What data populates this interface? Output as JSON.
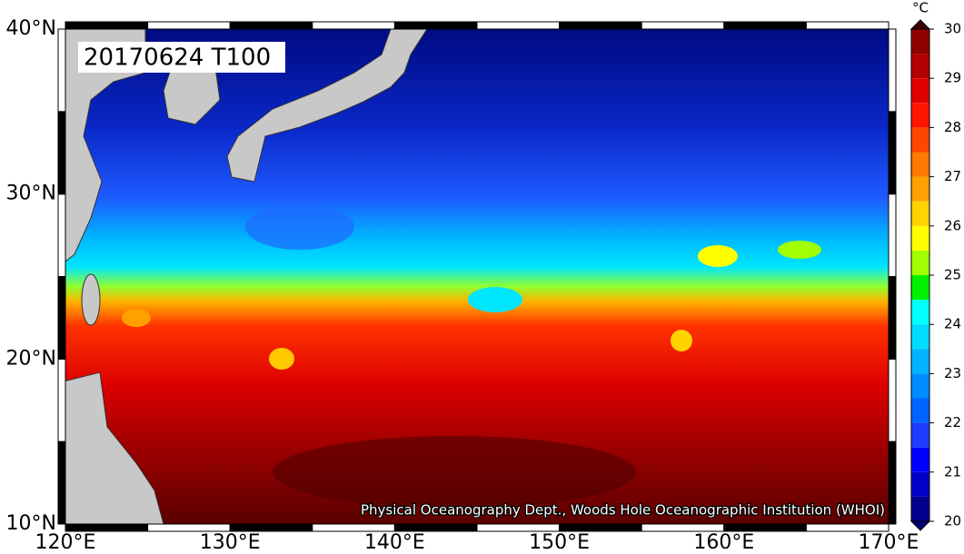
{
  "title": "20170624 T100",
  "credit": "Physical Oceanography Dept., Woods Hole Oceanographic Institution (WHOI)",
  "xlim": [
    120,
    170
  ],
  "ylim": [
    10,
    40
  ],
  "xticks": [
    {
      "value": 120,
      "label": "120°E"
    },
    {
      "value": 130,
      "label": "130°E"
    },
    {
      "value": 140,
      "label": "140°E"
    },
    {
      "value": 150,
      "label": "150°E"
    },
    {
      "value": 160,
      "label": "160°E"
    },
    {
      "value": 170,
      "label": "170°E"
    }
  ],
  "yticks": [
    {
      "value": 10,
      "label": "10°N"
    },
    {
      "value": 20,
      "label": "20°N"
    },
    {
      "value": 30,
      "label": "30°N"
    },
    {
      "value": 40,
      "label": "40°N"
    }
  ],
  "colorbar": {
    "unit": "°C",
    "lim": [
      20,
      30
    ],
    "ticks": [
      20,
      21,
      22,
      23,
      24,
      25,
      26,
      27,
      28,
      29,
      30
    ],
    "colors": [
      "#00008c",
      "#0000c8",
      "#0000ff",
      "#1e3cff",
      "#0064ff",
      "#008cff",
      "#00b4ff",
      "#00dcff",
      "#00ffff",
      "#00f000",
      "#a0ff00",
      "#ffff00",
      "#ffd200",
      "#ffa000",
      "#ff7800",
      "#ff4600",
      "#ff1400",
      "#e00000",
      "#b40000",
      "#8c0000"
    ],
    "under_color": "#000078",
    "over_color": "#3c0000"
  }
}
